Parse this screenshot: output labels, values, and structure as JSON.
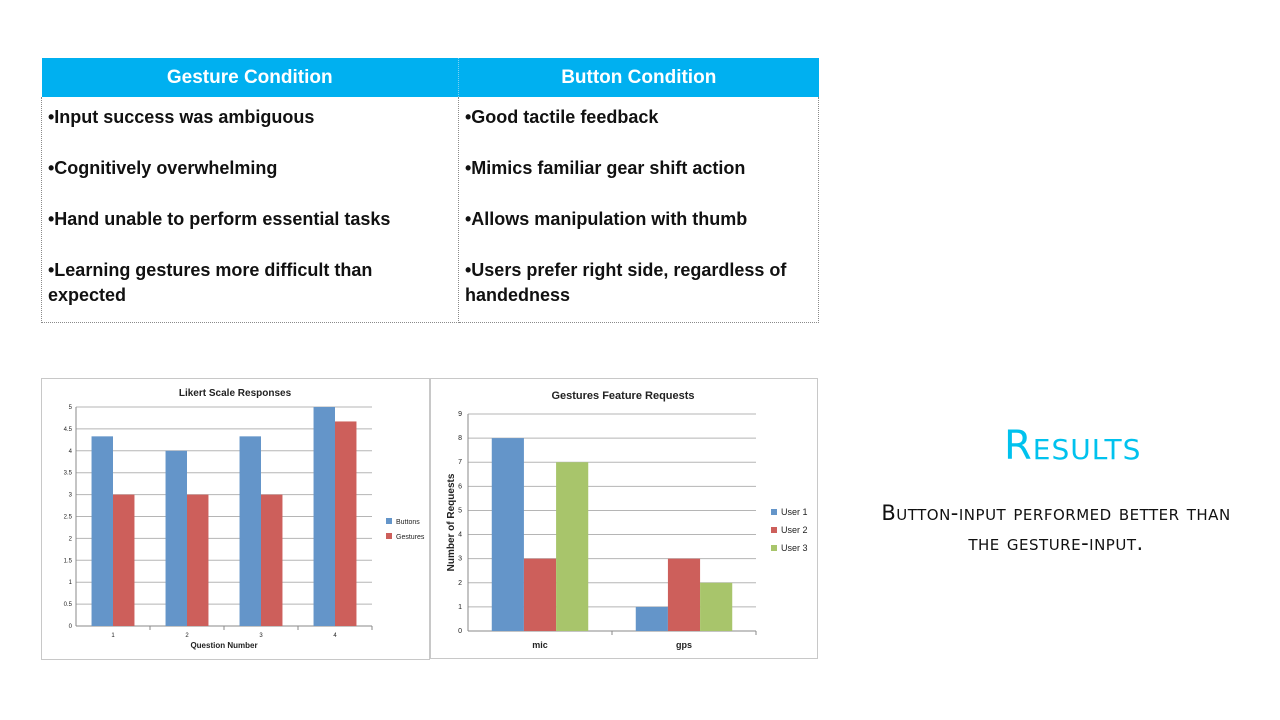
{
  "table": {
    "headers": [
      "Gesture Condition",
      "Button Condition"
    ],
    "gesture_items": [
      "•Input success was ambiguous",
      "•Cognitively overwhelming",
      "•Hand unable to perform essential tasks",
      "•Learning gestures more difficult than expected"
    ],
    "button_items": [
      "•Good tactile feedback",
      "•Mimics familiar gear shift action",
      "•Allows manipulation with thumb",
      "•Users prefer right side, regardless of handedness"
    ]
  },
  "results": {
    "title": "Results",
    "text": "Button-input performed better than the gesture-input."
  },
  "colors": {
    "header_bg": "#00b0f0",
    "title_accent": "#00c2ee",
    "blue": "#6495c9",
    "red": "#cd5f5b",
    "green": "#a8c56b"
  },
  "chart_data": [
    {
      "type": "bar",
      "title": "Likert Scale Responses",
      "xlabel": "Question Number",
      "ylabel": "",
      "categories": [
        "1",
        "2",
        "3",
        "4"
      ],
      "series": [
        {
          "name": "Buttons",
          "values": [
            4.33,
            4,
            4.33,
            5
          ]
        },
        {
          "name": "Gestures",
          "values": [
            3,
            3,
            3,
            4.67
          ]
        }
      ],
      "ylim": [
        0,
        5
      ],
      "yticks": [
        "0",
        "0.5",
        "1",
        "1.5",
        "2",
        "2.5",
        "3",
        "3.5",
        "4",
        "4.5",
        "5"
      ],
      "grid": true,
      "legend": "right"
    },
    {
      "type": "bar",
      "title": "Gestures Feature Requests",
      "xlabel": "",
      "ylabel": "Number of Requests",
      "categories": [
        "mic",
        "gps"
      ],
      "series": [
        {
          "name": "User 1",
          "values": [
            8,
            1
          ]
        },
        {
          "name": "User 2",
          "values": [
            3,
            3
          ]
        },
        {
          "name": "User 3",
          "values": [
            7,
            2
          ]
        }
      ],
      "ylim": [
        0,
        9
      ],
      "yticks": [
        "0",
        "1",
        "2",
        "3",
        "4",
        "5",
        "6",
        "7",
        "8",
        "9"
      ],
      "grid": true,
      "legend": "right"
    }
  ]
}
